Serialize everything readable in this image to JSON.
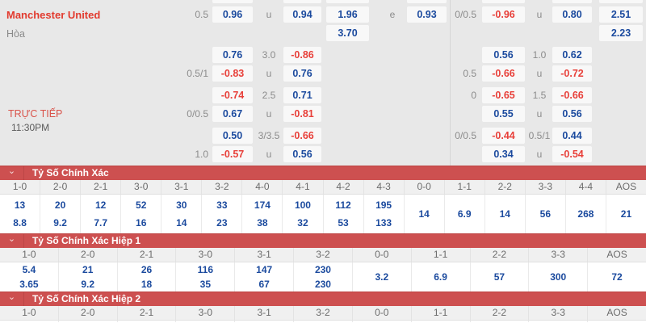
{
  "colors": {
    "panel_bg": "#e8e8e8",
    "cell_bg": "#f8f8f8",
    "odds_positive": "#1b4a9e",
    "odds_negative": "#e8403a",
    "team_red": "#e23a2e",
    "banner_red": "#cd5050",
    "header_gray": "#f0f0f0"
  },
  "icons": {
    "chevron_down": "⌄"
  },
  "match": {
    "home_team": "Manchester United",
    "draw_label": "Hòa",
    "live_label": "TRỰC TIẾP",
    "time": "11:30PM"
  },
  "odds_grid": {
    "rows": [
      {
        "cells": {
          "hc1": "0.5",
          "c1": "0.96",
          "hc2": "u",
          "c2": "0.94",
          "c3": "1.96",
          "hc3": "e",
          "c4": "0.93",
          "hc4": "0/0.5",
          "c5": "-0.96",
          "hc5": "u",
          "c6": "0.80",
          "c7": "2.51"
        }
      },
      {
        "cells": {
          "c3": "3.70",
          "c7": "2.23"
        }
      },
      {
        "cells": {
          "c1": "0.76",
          "hc2": "3.0",
          "c2": "-0.86",
          "c5": "0.56",
          "hc5": "1.0",
          "c6": "0.62"
        }
      },
      {
        "cells": {
          "hc1": "0.5/1",
          "c1": "-0.83",
          "hc2": "u",
          "c2": "0.76",
          "hc4": "0.5",
          "c5": "-0.66",
          "hc5": "u",
          "c6": "-0.72"
        }
      },
      {
        "cells": {
          "c1": "-0.74",
          "hc2": "2.5",
          "c2": "0.71",
          "hc4": "0",
          "c5": "-0.65",
          "hc5": "1.5",
          "c6": "-0.66"
        }
      },
      {
        "cells": {
          "hc1": "0/0.5",
          "c1": "0.67",
          "hc2": "u",
          "c2": "-0.81",
          "c5": "0.55",
          "hc5": "u",
          "c6": "0.56"
        }
      },
      {
        "cells": {
          "c1": "0.50",
          "hc2": "3/3.5",
          "c2": "-0.66",
          "hc4": "0/0.5",
          "c5": "-0.44",
          "hc5": "0.5/1",
          "c6": "0.44"
        }
      },
      {
        "cells": {
          "hc1": "1.0",
          "c1": "-0.57",
          "hc2": "u",
          "c2": "0.56",
          "c5": "0.34",
          "hc5": "u",
          "c6": "-0.54"
        }
      }
    ]
  },
  "score_sections": [
    {
      "title": "Tỷ Số Chính Xác",
      "columns": [
        "1-0",
        "2-0",
        "2-1",
        "3-0",
        "3-1",
        "3-2",
        "4-0",
        "4-1",
        "4-2",
        "4-3",
        "0-0",
        "1-1",
        "2-2",
        "3-3",
        "4-4",
        "AOS"
      ],
      "values": [
        [
          "13",
          "8.8"
        ],
        [
          "20",
          "9.2"
        ],
        [
          "12",
          "7.7"
        ],
        [
          "52",
          "16"
        ],
        [
          "30",
          "14"
        ],
        [
          "33",
          "23"
        ],
        [
          "174",
          "38"
        ],
        [
          "100",
          "32"
        ],
        [
          "112",
          "53"
        ],
        [
          "195",
          "133"
        ],
        [
          "14"
        ],
        [
          "6.9"
        ],
        [
          "14"
        ],
        [
          "56"
        ],
        [
          "268"
        ],
        [
          "21"
        ]
      ]
    },
    {
      "title": "Tỷ Số Chính Xác Hiệp 1",
      "columns": [
        "1-0",
        "2-0",
        "2-1",
        "3-0",
        "3-1",
        "3-2",
        "0-0",
        "1-1",
        "2-2",
        "3-3",
        "AOS"
      ],
      "values": [
        [
          "5.4",
          "3.65"
        ],
        [
          "21",
          "9.2"
        ],
        [
          "26",
          "18"
        ],
        [
          "116",
          "35"
        ],
        [
          "147",
          "67"
        ],
        [
          "230",
          "230"
        ],
        [
          "3.2"
        ],
        [
          "6.9"
        ],
        [
          "57"
        ],
        [
          "300"
        ],
        [
          "72"
        ]
      ]
    },
    {
      "title": "Tỷ Số Chính Xác Hiệp 2",
      "columns": [
        "1-0",
        "2-0",
        "2-1",
        "3-0",
        "3-1",
        "3-2",
        "0-0",
        "1-1",
        "2-2",
        "3-3",
        "AOS"
      ],
      "values": []
    }
  ]
}
